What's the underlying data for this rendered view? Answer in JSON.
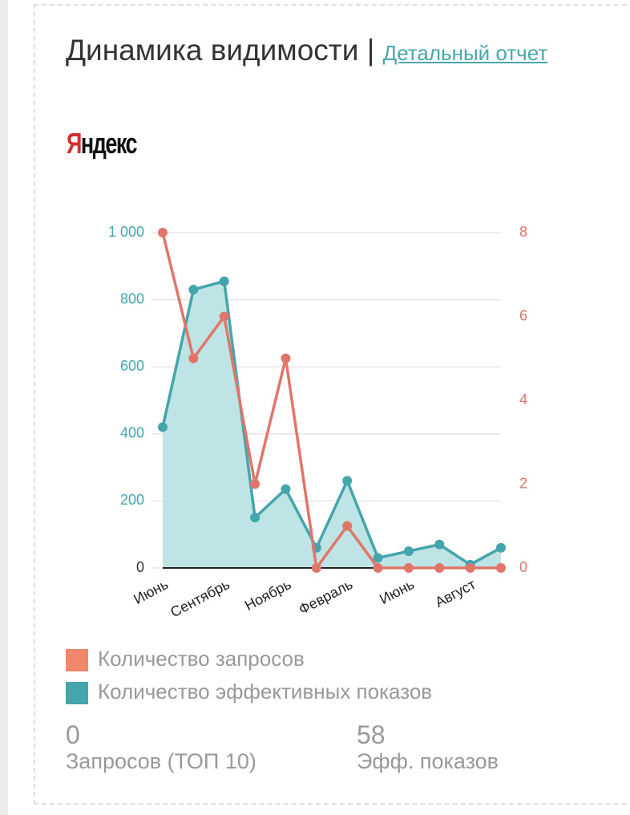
{
  "header": {
    "title": "Динамика видимости |",
    "link": "Детальный отчет",
    "logo": "Яндекс"
  },
  "chart_data": {
    "type": "line",
    "categories": [
      "Июнь",
      null,
      "Сентябрь",
      null,
      "Ноябрь",
      null,
      "Февраль",
      null,
      "Июнь",
      null,
      "Август",
      null
    ],
    "series": [
      {
        "name": "Количество запросов",
        "color": "#e0766a",
        "axis": "y2",
        "values": [
          8,
          5,
          6,
          2,
          5,
          0,
          1,
          0,
          0,
          0,
          0,
          0
        ]
      },
      {
        "name": "Количество эффективных показов",
        "color": "#45a5ad",
        "area_color": "#bfe4e6",
        "values": [
          420,
          830,
          855,
          150,
          235,
          60,
          260,
          30,
          50,
          70,
          10,
          60
        ]
      }
    ],
    "ylim": [
      0,
      1000
    ],
    "yticks": [
      0,
      200,
      400,
      600,
      800,
      {
        "value": 1000,
        "label": "1 000"
      }
    ],
    "y2lim": [
      0,
      8
    ],
    "y2ticks": [
      0,
      2,
      4,
      6,
      8
    ],
    "grid": true
  },
  "stats": [
    {
      "value": "0",
      "label": "Запросов (ТОП 10)"
    },
    {
      "value": "58",
      "label": "Эфф. показов"
    }
  ]
}
